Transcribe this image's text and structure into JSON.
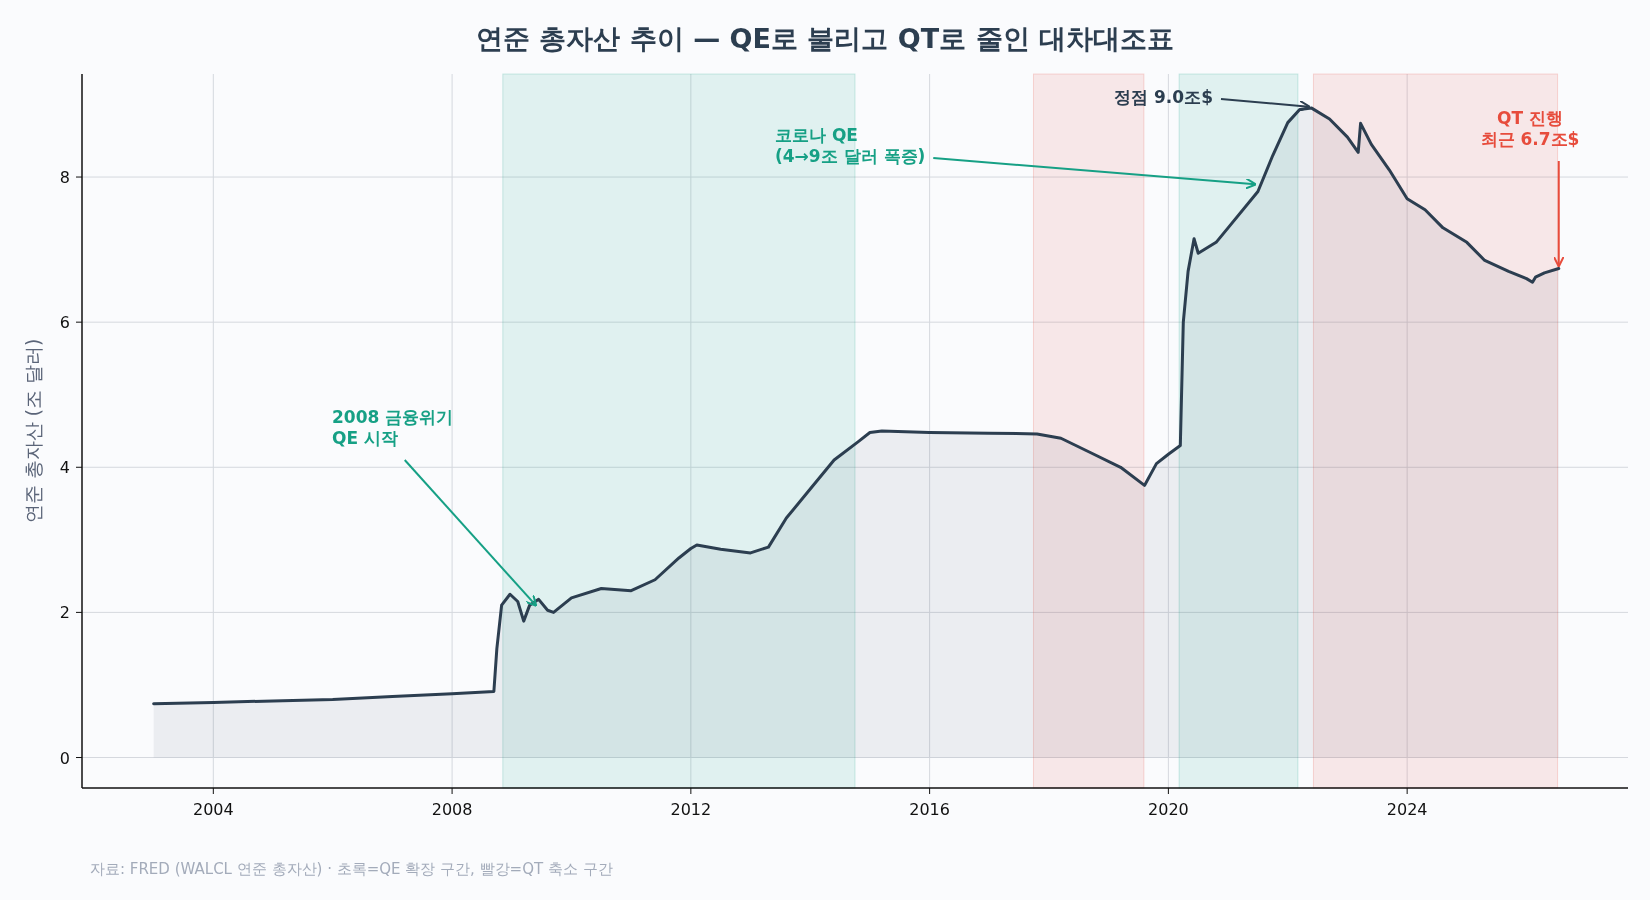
{
  "chart_data": {
    "type": "area",
    "title": "연준 총자산 추이 — QE로 불리고 QT로 줄인 대차대조표",
    "ylabel": "연준 총자산 (조 달러)",
    "color": "#2c3e50",
    "x": [
      2003.0,
      2004.0,
      2005.0,
      2006.0,
      2007.0,
      2008.0,
      2008.7,
      2008.75,
      2008.83,
      2008.97,
      2009.1,
      2009.2,
      2009.3,
      2009.45,
      2009.6,
      2009.7,
      2010.0,
      2010.5,
      2011.0,
      2011.4,
      2011.8,
      2012.0,
      2012.1,
      2012.5,
      2013.0,
      2013.3,
      2013.6,
      2014.0,
      2014.4,
      2014.8,
      2015.0,
      2015.2,
      2016.0,
      2017.0,
      2017.8,
      2018.2,
      2018.7,
      2019.2,
      2019.6,
      2019.8,
      2020.0,
      2020.2,
      2020.25,
      2020.33,
      2020.43,
      2020.5,
      2020.8,
      2021.0,
      2021.5,
      2021.75,
      2022.0,
      2022.2,
      2022.4,
      2022.7,
      2023.0,
      2023.18,
      2023.22,
      2023.4,
      2023.7,
      2024.0,
      2024.3,
      2024.6,
      2025.0,
      2025.3,
      2025.7,
      2026.0,
      2026.1,
      2026.15,
      2026.3,
      2026.54
    ],
    "values": [
      0.74,
      0.76,
      0.78,
      0.8,
      0.84,
      0.88,
      0.91,
      1.5,
      2.1,
      2.25,
      2.15,
      1.88,
      2.1,
      2.18,
      2.03,
      2.0,
      2.2,
      2.33,
      2.3,
      2.45,
      2.75,
      2.88,
      2.93,
      2.87,
      2.82,
      2.9,
      3.3,
      3.7,
      4.1,
      4.35,
      4.48,
      4.5,
      4.48,
      4.47,
      4.46,
      4.4,
      4.2,
      4.0,
      3.75,
      4.05,
      4.18,
      4.3,
      6.0,
      6.7,
      7.15,
      6.95,
      7.1,
      7.3,
      7.8,
      8.3,
      8.75,
      8.93,
      8.95,
      8.8,
      8.55,
      8.34,
      8.74,
      8.45,
      8.1,
      7.7,
      7.55,
      7.3,
      7.1,
      6.85,
      6.7,
      6.6,
      6.55,
      6.62,
      6.68,
      6.74
    ],
    "xlim": [
      2001.8,
      2027.7
    ],
    "ylim": [
      -0.42,
      9.42
    ],
    "xticks": [
      2004,
      2008,
      2012,
      2016,
      2020,
      2024
    ],
    "yticks": [
      0,
      2,
      4,
      6,
      8
    ],
    "grid": true,
    "bands": [
      {
        "axis": "x",
        "from": 2008.85,
        "to": 2014.75,
        "color": "#16a085"
      },
      {
        "axis": "x",
        "from": 2017.74,
        "to": 2019.59,
        "color": "#e74c3c"
      },
      {
        "axis": "x",
        "from": 2020.18,
        "to": 2022.17,
        "color": "#16a085"
      },
      {
        "axis": "x",
        "from": 2022.43,
        "to": 2026.52,
        "color": "#e74c3c"
      }
    ],
    "annotations": [
      {
        "text": "2008 금융위기\nQE 시작",
        "x": 2009.4,
        "y": 2.1
      },
      {
        "text": "코로나 QE\n(4→9조 달러 폭증)",
        "x": 2021.45,
        "y": 7.9
      },
      {
        "text": "정점 9.0조$",
        "x": 2022.35,
        "y": 8.97
      },
      {
        "text": "QT 진행\n최근 6.7조$",
        "x": 2026.54,
        "y": 6.78
      },
      "자료: FRED (WALCL 연준 총자산) · 초록=QE 확장 구간, 빨강=QT 축소 구간"
    ]
  }
}
